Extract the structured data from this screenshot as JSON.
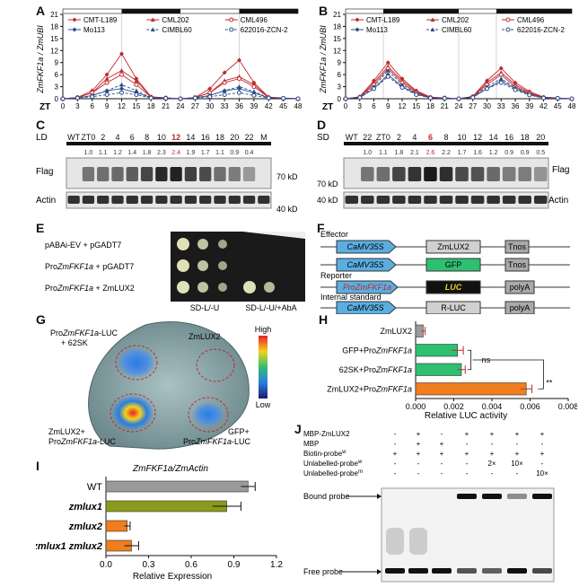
{
  "panels": {
    "A": "A",
    "B": "B",
    "C": "C",
    "D": "D",
    "E": "E",
    "F": "F",
    "G": "G",
    "H": "H",
    "I": "I",
    "J": "J"
  },
  "colors": {
    "red": "#c0282d",
    "blue": "#2a4d8a",
    "green": "#2fbf71",
    "orange": "#f07d1e",
    "olive": "#8a9a1a",
    "grey": "#9a9a9a",
    "cyan": "#5aaee0"
  },
  "panelA": {
    "ylabel": "ZmFKF1a / ZmUBI",
    "zt_label": "ZT",
    "legend": [
      "CMT-L189",
      "CML202",
      "CML496",
      "Mo113",
      "CIMBL60",
      "622016-ZCN-2"
    ]
  },
  "panelB": {
    "ylabel": "ZmFKF1a / ZmUBI",
    "zt_label": "ZT",
    "legend": [
      "CMT-L189",
      "CML202",
      "CML496",
      "Mo113",
      "CIMBL60",
      "622016-ZCN-2"
    ]
  },
  "panelC": {
    "condition": "LD",
    "lanes": [
      "WT",
      "ZT0",
      "2",
      "4",
      "6",
      "8",
      "10",
      "12",
      "14",
      "16",
      "18",
      "20",
      "22",
      "M"
    ],
    "ratios": [
      "1.0",
      "1.1",
      "1.2",
      "1.4",
      "1.8",
      "2.3",
      "2.4",
      "1.9",
      "1.7",
      "1.1",
      "0.9",
      "0.4"
    ],
    "flag": "Flag",
    "actin": "Actin",
    "m70": "70 kD",
    "m40": "40 kD"
  },
  "panelD": {
    "condition": "SD",
    "lanes": [
      "WT",
      "22",
      "ZT0",
      "2",
      "4",
      "6",
      "8",
      "10",
      "12",
      "14",
      "16",
      "18",
      "20"
    ],
    "ratios": [
      "1.0",
      "1.1",
      "1.8",
      "2.1",
      "2.6",
      "2.2",
      "1.7",
      "1.6",
      "1.2",
      "0.9",
      "0.9",
      "0.5"
    ],
    "flag": "Flag",
    "actin": "Actin",
    "m70": "70 kD",
    "m40": "40 kD"
  },
  "panelE": {
    "rows": [
      {
        "pre": "pABAi-EV + pGADT7",
        "it": "",
        "post": ""
      },
      {
        "pre": "Pro",
        "it": "ZmFKF1a",
        "post": " + pGADT7"
      },
      {
        "pre": "Pro",
        "it": "ZmFKF1a",
        "post": " + ZmLUX2"
      }
    ],
    "media1": "SD-L/-U",
    "media2": "SD-L/-U/+AbA"
  },
  "panelF": {
    "effector": "Effector",
    "reporter": "Reporter",
    "internal": "Internal standard",
    "promoter": "CaMV35S",
    "zmlux2": "ZmLUX2",
    "gfp": "GFP",
    "tnos": "Tnos",
    "pro": "ProZmFKF1a",
    "luc": "LUC",
    "polya": "polyA",
    "rluc": "R-LUC"
  },
  "panelG": {
    "tl_pre": "Pro",
    "tl_it": "ZmFKF1a",
    "tl_post": "-LUC",
    "tl2": "+ 62SK",
    "tr": "ZmLUX2",
    "bl1": "ZmLUX2+",
    "bl_pre": "Pro",
    "bl_it": "ZmFKF1a",
    "bl_post": "-LUC",
    "br1": "GFP+",
    "br_pre": "Pro",
    "br_it": "ZmFKF1a",
    "br_post": "-LUC",
    "high": "High",
    "low": "Low"
  },
  "panelH": {
    "xlabel": "Relative LUC activity",
    "ns": "ns",
    "stars": "**",
    "xticks": [
      "0.000",
      "0.002",
      "0.004",
      "0.006",
      "0.008"
    ],
    "categories": [
      {
        "pre": "ZmLUX2",
        "it": ""
      },
      {
        "pre": "GFP+Pro",
        "it": "ZmFKF1a"
      },
      {
        "pre": "62SK+Pro",
        "it": "ZmFKF1a"
      },
      {
        "pre": "ZmLUX2+Pro",
        "it": "ZmFKF1a"
      }
    ]
  },
  "panelI": {
    "title": "ZmFKF1a/ZmActin",
    "xlabel": "Relative Expression",
    "xticks": [
      "0.0",
      "0.3",
      "0.6",
      "0.9",
      "1.2"
    ],
    "categories": [
      "WT",
      "zmlux1",
      "zmlux2",
      "zmlux1 zmlux2"
    ]
  },
  "panelJ": {
    "rows": [
      "MBP-ZmLUX2",
      "MBP",
      "Biotin-probe",
      "Unlabelled-probe",
      "Unlabelled-probe"
    ],
    "sup": [
      "",
      "",
      "w",
      "w",
      "m"
    ],
    "bound": "Bound probe",
    "free": "Free probe",
    "cells": [
      [
        "-",
        "+",
        "-",
        "+",
        "+",
        "+",
        "+"
      ],
      [
        "-",
        "+",
        "+",
        "-",
        "-",
        "-",
        "-"
      ],
      [
        "+",
        "+",
        "+",
        "+",
        "+",
        "+",
        "+"
      ],
      [
        "-",
        "-",
        "-",
        "-",
        "2×",
        "10×",
        "-"
      ],
      [
        "-",
        "-",
        "-",
        "-",
        "-",
        "-",
        "10×"
      ]
    ]
  },
  "chart_data": [
    {
      "type": "line",
      "panel": "A",
      "ylabel": "ZmFKF1a / ZmUBI",
      "xlabel": "ZT",
      "x": [
        0,
        3,
        6,
        9,
        12,
        15,
        18,
        21,
        24,
        27,
        30,
        33,
        36,
        39,
        42,
        45,
        48
      ],
      "ylim": [
        0,
        21
      ],
      "yticks": [
        0,
        3,
        6,
        9,
        12,
        15,
        18,
        21
      ],
      "series": [
        {
          "name": "CMT-L189",
          "values": [
            0,
            0.3,
            2.0,
            6.0,
            11.2,
            5.0,
            0.5,
            0.2,
            0,
            0.3,
            2.5,
            6.5,
            9.6,
            4.0,
            0.4,
            0.2,
            0
          ]
        },
        {
          "name": "CML202",
          "values": [
            0,
            0.3,
            1.5,
            5.0,
            7.0,
            4.5,
            0.4,
            0.2,
            0,
            0.3,
            1.5,
            4.5,
            5.5,
            3.5,
            0.3,
            0.1,
            0
          ]
        },
        {
          "name": "CML496",
          "values": [
            0,
            0.3,
            1.5,
            4.0,
            6.0,
            3.5,
            0.4,
            0.2,
            0,
            0.3,
            1.5,
            4.0,
            5.0,
            3.0,
            0.3,
            0.1,
            0
          ]
        },
        {
          "name": "Mo113",
          "values": [
            0,
            0.2,
            0.8,
            2.0,
            2.5,
            1.5,
            0.3,
            0.1,
            0,
            0.2,
            0.8,
            2.0,
            2.5,
            1.5,
            0.2,
            0.1,
            0
          ]
        },
        {
          "name": "CIMBL60",
          "values": [
            0,
            0.2,
            0.8,
            2.0,
            3.5,
            2.0,
            0.3,
            0.1,
            0,
            0.2,
            0.8,
            2.0,
            3.0,
            1.8,
            0.2,
            0.1,
            0
          ]
        },
        {
          "name": "622016-ZCN-2",
          "values": [
            0,
            0.2,
            0.5,
            1.0,
            1.5,
            1.0,
            0.2,
            0.1,
            0,
            0.2,
            0.5,
            1.0,
            1.5,
            0.8,
            0.2,
            0.1,
            0
          ]
        }
      ]
    },
    {
      "type": "line",
      "panel": "B",
      "ylabel": "ZmFKF1a / ZmUBI",
      "xlabel": "ZT",
      "x": [
        0,
        3,
        6,
        9,
        12,
        15,
        18,
        21,
        24,
        27,
        30,
        33,
        36,
        39,
        42,
        45,
        48
      ],
      "ylim": [
        0,
        21
      ],
      "yticks": [
        0,
        3,
        6,
        9,
        12,
        15,
        18,
        21
      ],
      "series": [
        {
          "name": "CMT-L189",
          "values": [
            0,
            0.5,
            4.5,
            9.0,
            5.0,
            2.0,
            0.4,
            0.2,
            0,
            0.6,
            4.5,
            7.6,
            4.0,
            1.8,
            0.4,
            0.2,
            0
          ]
        },
        {
          "name": "CML202",
          "values": [
            0,
            0.4,
            4.0,
            8.0,
            4.5,
            1.8,
            0.3,
            0.2,
            0,
            0.5,
            4.0,
            6.5,
            3.5,
            1.5,
            0.3,
            0.1,
            0
          ]
        },
        {
          "name": "CML496",
          "values": [
            0,
            0.4,
            3.5,
            7.5,
            4.0,
            1.5,
            0.3,
            0.2,
            0,
            0.5,
            3.5,
            6.0,
            3.0,
            1.3,
            0.3,
            0.1,
            0
          ]
        },
        {
          "name": "Mo113",
          "values": [
            0,
            0.3,
            2.5,
            6.0,
            3.0,
            1.2,
            0.2,
            0.1,
            0,
            0.4,
            2.5,
            4.5,
            2.5,
            1.0,
            0.2,
            0.1,
            0
          ]
        },
        {
          "name": "CIMBL60",
          "values": [
            0,
            0.3,
            3.0,
            7.0,
            3.5,
            1.3,
            0.2,
            0.1,
            0,
            0.4,
            3.0,
            5.0,
            2.8,
            1.1,
            0.2,
            0.1,
            0
          ]
        },
        {
          "name": "622016-ZCN-2",
          "values": [
            0,
            0.3,
            2.5,
            5.5,
            2.8,
            1.0,
            0.2,
            0.1,
            0,
            0.3,
            2.5,
            4.0,
            2.2,
            0.9,
            0.2,
            0.1,
            0
          ]
        }
      ]
    },
    {
      "type": "bar",
      "panel": "H",
      "xlabel": "Relative LUC activity",
      "categories": [
        "ZmLUX2",
        "GFP+ProZmFKF1a",
        "62SK+ProZmFKF1a",
        "ZmLUX2+ProZmFKF1a"
      ],
      "values": [
        0.0004,
        0.0022,
        0.0024,
        0.0058
      ],
      "errors": [
        0.0001,
        0.0003,
        0.0002,
        0.0003
      ],
      "xlim": [
        0,
        0.008
      ]
    },
    {
      "type": "bar",
      "panel": "I",
      "title": "ZmFKF1a/ZmActin",
      "xlabel": "Relative Expression",
      "categories": [
        "WT",
        "zmlux1",
        "zmlux2",
        "zmlux1 zmlux2"
      ],
      "values": [
        1.0,
        0.85,
        0.15,
        0.18
      ],
      "errors": [
        0.05,
        0.1,
        0.02,
        0.05
      ],
      "xlim": [
        0,
        1.2
      ]
    }
  ]
}
